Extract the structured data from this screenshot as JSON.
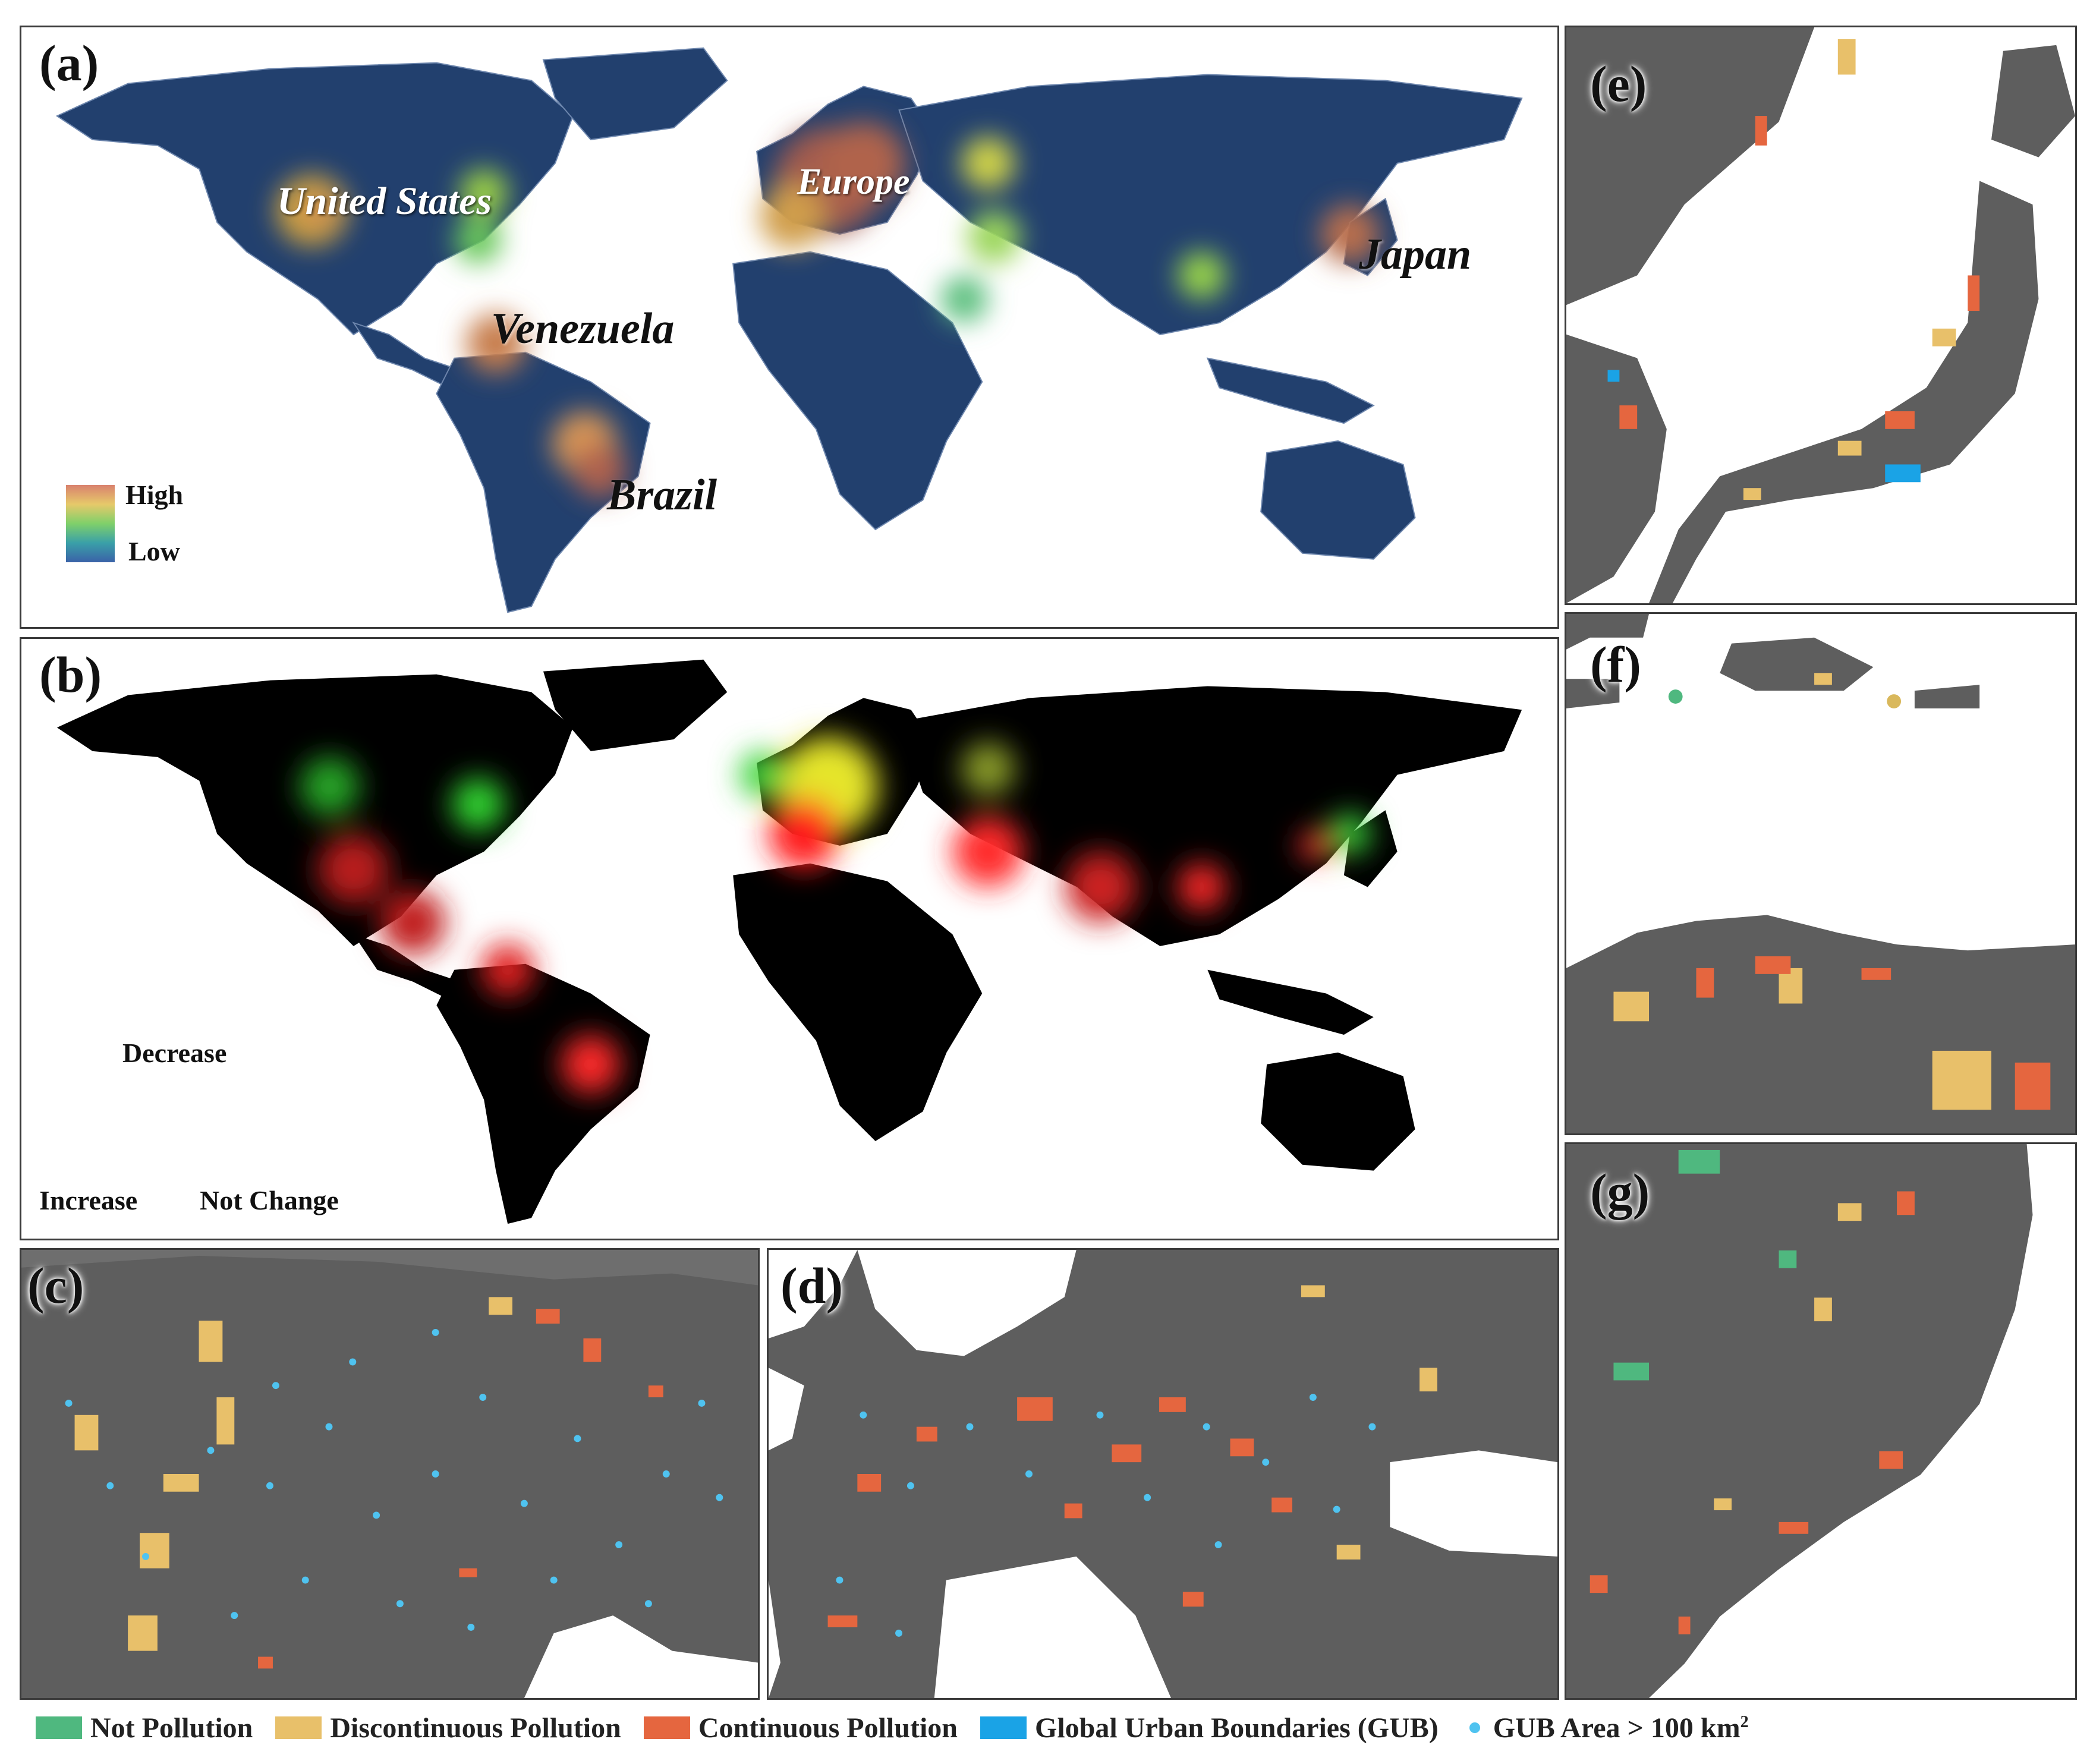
{
  "panels": {
    "a": {
      "label": "(a)",
      "regions": [
        "United States",
        "Europe",
        "Japan",
        "Venezuela",
        "Brazil"
      ],
      "legend_high": "High",
      "legend_low": "Low"
    },
    "b": {
      "label": "(b)",
      "legend_top": "Decrease",
      "legend_left": "Increase",
      "legend_right": "Not Change"
    },
    "c": {
      "label": "(c)"
    },
    "d": {
      "label": "(d)"
    },
    "e": {
      "label": "(e)"
    },
    "f": {
      "label": "(f)"
    },
    "g": {
      "label": "(g)"
    }
  },
  "legend": {
    "items": [
      {
        "label": "Not Pollution",
        "color": "#4fb87f"
      },
      {
        "label": "Discontinuous Pollution",
        "color": "#e8c06a"
      },
      {
        "label": "Continuous Pollution",
        "color": "#e5663f"
      },
      {
        "label": "Global Urban Boundaries (GUB)",
        "color": "#1aa3e6"
      }
    ],
    "dot_label": "GUB Area > 100 km",
    "dot_sup": "2",
    "dot_color": "#4fc3f0"
  },
  "colors": {
    "ocean": "#ffffff",
    "land_a": "#22406e",
    "land_b": "#000000",
    "terrain": "#5e5e5e"
  }
}
